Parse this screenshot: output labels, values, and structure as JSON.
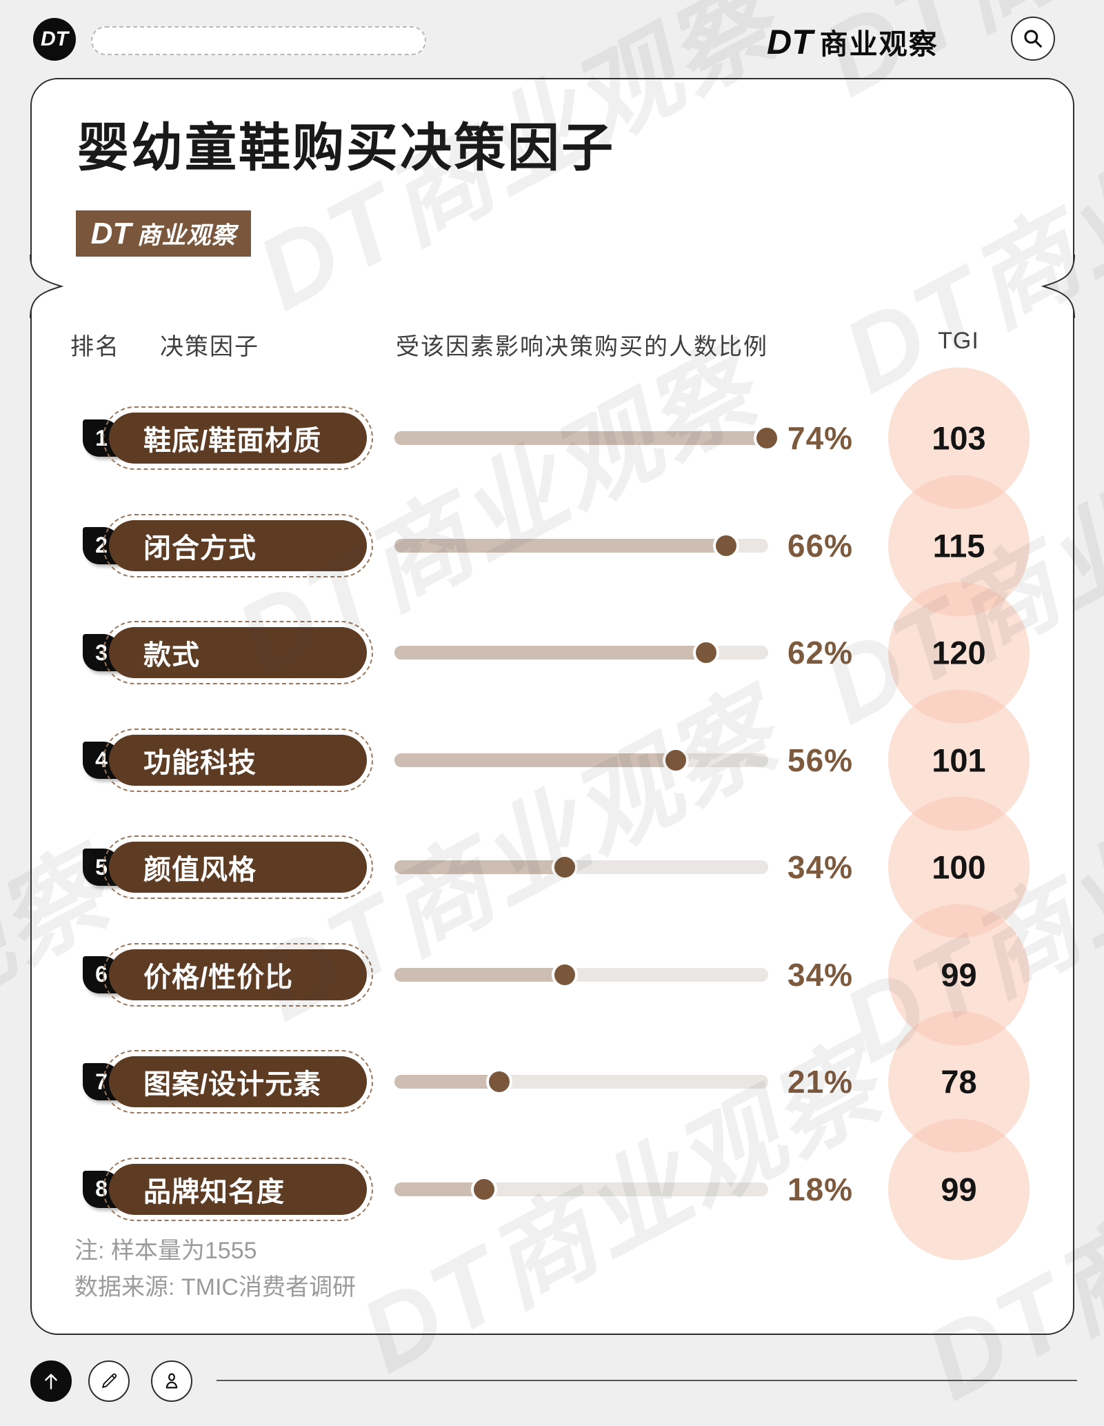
{
  "watermark_text": "DT商业观察",
  "topbar": {
    "logo_text": "DT",
    "brand_dt": "DT",
    "brand_name": "商业观察"
  },
  "header": {
    "title": "婴幼童鞋购买决策因子",
    "badge_dt": "DT",
    "badge_name": "商业观察"
  },
  "table": {
    "col_rank": "排名",
    "col_factor": "决策因子",
    "col_influence": "受该因素影响决策购买的人数比例",
    "col_tgi": "TGI"
  },
  "rows": [
    {
      "rank": "1",
      "label": "鞋底/鞋面材质",
      "percent": "74%",
      "value": 74,
      "tgi": "103"
    },
    {
      "rank": "2",
      "label": "闭合方式",
      "percent": "66%",
      "value": 66,
      "tgi": "115"
    },
    {
      "rank": "3",
      "label": "款式",
      "percent": "62%",
      "value": 62,
      "tgi": "120"
    },
    {
      "rank": "4",
      "label": "功能科技",
      "percent": "56%",
      "value": 56,
      "tgi": "101"
    },
    {
      "rank": "5",
      "label": "颜值风格",
      "percent": "34%",
      "value": 34,
      "tgi": "100"
    },
    {
      "rank": "6",
      "label": "价格/性价比",
      "percent": "34%",
      "value": 34,
      "tgi": "99"
    },
    {
      "rank": "7",
      "label": "图案/设计元素",
      "percent": "21%",
      "value": 21,
      "tgi": "78"
    },
    {
      "rank": "8",
      "label": "品牌知名度",
      "percent": "18%",
      "value": 18,
      "tgi": "99"
    }
  ],
  "chart_data": {
    "type": "bar",
    "orientation": "horizontal",
    "title": "婴幼童鞋购买决策因子",
    "categories": [
      "鞋底/鞋面材质",
      "闭合方式",
      "款式",
      "功能科技",
      "颜值风格",
      "价格/性价比",
      "图案/设计元素",
      "品牌知名度"
    ],
    "series": [
      {
        "name": "受该因素影响决策购买的人数比例",
        "unit": "%",
        "values": [
          74,
          66,
          62,
          56,
          34,
          34,
          21,
          18
        ]
      },
      {
        "name": "TGI",
        "values": [
          103,
          115,
          120,
          101,
          100,
          99,
          78,
          99
        ]
      }
    ],
    "bar_scale_max": 74,
    "legend_position": "none",
    "grid": false,
    "notes": [
      "注: 样本量为1555",
      "数据来源: TMIC消费者调研"
    ]
  },
  "notes": [
    "注: 样本量为1555",
    "数据来源: TMIC消费者调研"
  ],
  "icons": {
    "search": "magnifier-icon",
    "footer": [
      "up-arrow-icon",
      "pencil-icon",
      "person-icon"
    ]
  },
  "colors": {
    "background": "#efefef",
    "card": "#ffffff",
    "badge_brown": "#7a563c",
    "pill_brown": "#5e3b23",
    "bar_track": "#e9e6e3",
    "bar_fill": "#cdbdb2",
    "dot_brown": "#7a573a",
    "percent_brown": "#7d5a3e",
    "tgi_circle_pink": "#fce3da",
    "rank_black": "#0d0d0d"
  }
}
